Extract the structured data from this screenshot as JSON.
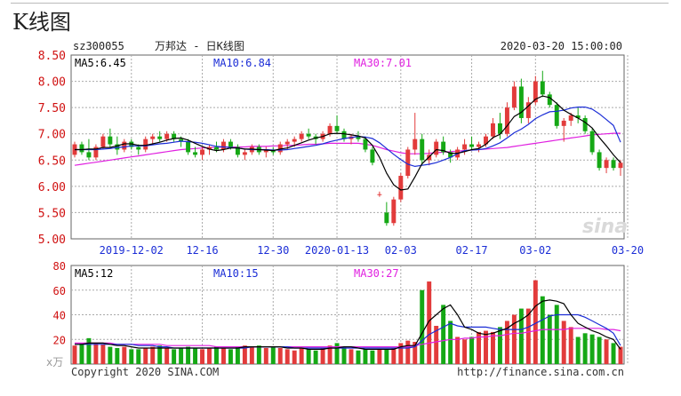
{
  "page": {
    "heading": "K线图",
    "symbol": "sz300055",
    "name_line": "万邦达 - 日K线图",
    "datetime": "2020-03-20 15:00:00",
    "watermark": "sina",
    "copyright": "Copyright 2020 SINA.COM",
    "url": "http://finance.sina.com.cn"
  },
  "colors": {
    "up": "#e23b3b",
    "down": "#15a815",
    "ma5": "#000000",
    "ma10": "#1b2dd6",
    "ma30": "#e020e0",
    "grid": "#aaaaaa",
    "axis_text": "#d01010"
  },
  "chart_data": [
    {
      "type": "candlestick",
      "title": "万邦达 - 日K线图",
      "ylim": [
        5.0,
        8.5
      ],
      "y_ticks": [
        "8.50",
        "8.00",
        "7.50",
        "7.00",
        "6.50",
        "6.00",
        "5.50",
        "5.00"
      ],
      "x_tick_labels": [
        "2019-12-02",
        "12-16",
        "12-30",
        "2020-01-13",
        "02-03",
        "02-17",
        "03-02",
        "03-20"
      ],
      "x_tick_index": [
        8,
        18,
        28,
        37,
        46,
        56,
        65,
        78
      ],
      "grid": true,
      "legend": [
        {
          "label": "MA5:",
          "value": "6.45",
          "key": "ma5"
        },
        {
          "label": "MA10:",
          "value": "6.84",
          "key": "ma10"
        },
        {
          "label": "MA30:",
          "value": "7.01",
          "key": "ma30"
        }
      ],
      "candles": [
        [
          6.6,
          6.85,
          6.55,
          6.8
        ],
        [
          6.8,
          6.85,
          6.6,
          6.65
        ],
        [
          6.65,
          6.9,
          6.5,
          6.55
        ],
        [
          6.55,
          6.8,
          6.5,
          6.75
        ],
        [
          6.75,
          7.0,
          6.7,
          6.95
        ],
        [
          6.95,
          7.1,
          6.75,
          6.8
        ],
        [
          6.8,
          6.95,
          6.6,
          6.7
        ],
        [
          6.7,
          6.9,
          6.65,
          6.85
        ],
        [
          6.85,
          6.9,
          6.7,
          6.75
        ],
        [
          6.75,
          6.8,
          6.6,
          6.7
        ],
        [
          6.7,
          6.95,
          6.65,
          6.9
        ],
        [
          6.9,
          7.0,
          6.8,
          6.95
        ],
        [
          6.95,
          7.05,
          6.85,
          6.9
        ],
        [
          6.9,
          7.05,
          6.85,
          7.0
        ],
        [
          7.0,
          7.05,
          6.85,
          6.9
        ],
        [
          6.9,
          6.95,
          6.75,
          6.85
        ],
        [
          6.85,
          6.9,
          6.6,
          6.65
        ],
        [
          6.65,
          6.75,
          6.55,
          6.6
        ],
        [
          6.6,
          6.75,
          6.5,
          6.7
        ],
        [
          6.7,
          6.8,
          6.6,
          6.75
        ],
        [
          6.75,
          6.85,
          6.65,
          6.7
        ],
        [
          6.7,
          6.9,
          6.65,
          6.85
        ],
        [
          6.85,
          6.9,
          6.7,
          6.75
        ],
        [
          6.75,
          6.8,
          6.55,
          6.6
        ],
        [
          6.6,
          6.7,
          6.5,
          6.65
        ],
        [
          6.65,
          6.8,
          6.6,
          6.75
        ],
        [
          6.75,
          6.8,
          6.6,
          6.65
        ],
        [
          6.65,
          6.75,
          6.55,
          6.7
        ],
        [
          6.7,
          6.75,
          6.6,
          6.65
        ],
        [
          6.65,
          6.85,
          6.6,
          6.8
        ],
        [
          6.8,
          6.9,
          6.7,
          6.85
        ],
        [
          6.85,
          6.95,
          6.75,
          6.9
        ],
        [
          6.9,
          7.05,
          6.85,
          7.0
        ],
        [
          7.0,
          7.1,
          6.9,
          6.95
        ],
        [
          6.95,
          7.0,
          6.8,
          6.9
        ],
        [
          6.9,
          7.05,
          6.85,
          7.0
        ],
        [
          7.0,
          7.2,
          6.95,
          7.15
        ],
        [
          7.15,
          7.35,
          7.0,
          7.05
        ],
        [
          7.05,
          7.1,
          6.85,
          6.9
        ],
        [
          6.9,
          7.0,
          6.8,
          6.95
        ],
        [
          6.95,
          7.05,
          6.85,
          6.9
        ],
        [
          6.9,
          6.95,
          6.65,
          6.7
        ],
        [
          6.7,
          6.75,
          6.4,
          6.45
        ],
        [
          5.85,
          5.9,
          5.8,
          5.85
        ],
        [
          5.5,
          5.7,
          5.25,
          5.3
        ],
        [
          5.3,
          5.8,
          5.25,
          5.75
        ],
        [
          5.75,
          6.25,
          5.7,
          6.2
        ],
        [
          6.2,
          6.75,
          6.15,
          6.7
        ],
        [
          6.7,
          7.4,
          6.6,
          6.9
        ],
        [
          6.9,
          7.0,
          6.4,
          6.5
        ],
        [
          6.5,
          6.7,
          6.4,
          6.6
        ],
        [
          6.6,
          6.9,
          6.55,
          6.85
        ],
        [
          6.85,
          6.95,
          6.6,
          6.65
        ],
        [
          6.65,
          6.7,
          6.45,
          6.55
        ],
        [
          6.55,
          6.75,
          6.5,
          6.7
        ],
        [
          6.7,
          6.9,
          6.6,
          6.8
        ],
        [
          6.8,
          6.95,
          6.7,
          6.75
        ],
        [
          6.75,
          6.85,
          6.65,
          6.8
        ],
        [
          6.8,
          7.0,
          6.75,
          6.95
        ],
        [
          6.95,
          7.3,
          6.9,
          7.2
        ],
        [
          7.2,
          7.4,
          6.9,
          7.0
        ],
        [
          7.0,
          7.6,
          6.95,
          7.5
        ],
        [
          7.5,
          8.0,
          7.45,
          7.9
        ],
        [
          7.9,
          8.05,
          7.2,
          7.3
        ],
        [
          7.3,
          7.7,
          7.2,
          7.6
        ],
        [
          7.6,
          8.1,
          7.55,
          8.0
        ],
        [
          8.0,
          8.2,
          7.7,
          7.75
        ],
        [
          7.75,
          7.8,
          7.5,
          7.55
        ],
        [
          7.55,
          7.6,
          7.1,
          7.15
        ],
        [
          7.15,
          7.3,
          6.85,
          7.25
        ],
        [
          7.25,
          7.4,
          7.15,
          7.35
        ],
        [
          7.35,
          7.5,
          7.2,
          7.3
        ],
        [
          7.3,
          7.35,
          7.0,
          7.05
        ],
        [
          7.05,
          7.1,
          6.6,
          6.65
        ],
        [
          6.65,
          6.7,
          6.3,
          6.35
        ],
        [
          6.35,
          6.55,
          6.25,
          6.5
        ],
        [
          6.5,
          6.55,
          6.3,
          6.35
        ],
        [
          6.35,
          6.5,
          6.2,
          6.45
        ]
      ],
      "ma5": [
        6.7,
        6.7,
        6.71,
        6.71,
        6.74,
        6.74,
        6.77,
        6.81,
        6.81,
        6.78,
        6.78,
        6.81,
        6.84,
        6.88,
        6.91,
        6.92,
        6.88,
        6.82,
        6.76,
        6.71,
        6.68,
        6.7,
        6.73,
        6.73,
        6.71,
        6.71,
        6.7,
        6.69,
        6.68,
        6.71,
        6.73,
        6.78,
        6.83,
        6.88,
        6.92,
        6.95,
        7.0,
        7.01,
        7.0,
        6.98,
        6.96,
        6.92,
        6.78,
        6.55,
        6.25,
        6.03,
        5.93,
        5.95,
        6.18,
        6.43,
        6.56,
        6.7,
        6.68,
        6.63,
        6.63,
        6.66,
        6.7,
        6.72,
        6.8,
        6.93,
        6.99,
        7.15,
        7.33,
        7.41,
        7.53,
        7.66,
        7.72,
        7.69,
        7.58,
        7.45,
        7.37,
        7.3,
        7.22,
        7.11,
        6.93,
        6.77,
        6.6,
        6.45
      ],
      "ma10": [
        6.7,
        6.7,
        6.7,
        6.7,
        6.71,
        6.72,
        6.74,
        6.75,
        6.77,
        6.77,
        6.77,
        6.79,
        6.81,
        6.82,
        6.84,
        6.86,
        6.85,
        6.84,
        6.82,
        6.79,
        6.76,
        6.75,
        6.74,
        6.73,
        6.71,
        6.7,
        6.7,
        6.7,
        6.69,
        6.69,
        6.7,
        6.72,
        6.74,
        6.76,
        6.78,
        6.81,
        6.85,
        6.88,
        6.91,
        6.93,
        6.95,
        6.94,
        6.91,
        6.83,
        6.72,
        6.61,
        6.51,
        6.42,
        6.38,
        6.4,
        6.42,
        6.45,
        6.5,
        6.55,
        6.62,
        6.68,
        6.69,
        6.7,
        6.72,
        6.77,
        6.83,
        6.92,
        7.02,
        7.09,
        7.18,
        7.29,
        7.36,
        7.42,
        7.43,
        7.45,
        7.49,
        7.51,
        7.51,
        7.47,
        7.38,
        7.27,
        7.16,
        6.84
      ],
      "ma30": [
        6.4,
        6.42,
        6.44,
        6.46,
        6.48,
        6.5,
        6.52,
        6.54,
        6.56,
        6.58,
        6.6,
        6.62,
        6.64,
        6.66,
        6.68,
        6.7,
        6.71,
        6.72,
        6.73,
        6.74,
        6.74,
        6.75,
        6.75,
        6.75,
        6.75,
        6.76,
        6.76,
        6.76,
        6.77,
        6.77,
        6.78,
        6.78,
        6.79,
        6.8,
        6.8,
        6.81,
        6.82,
        6.82,
        6.82,
        6.82,
        6.82,
        6.8,
        6.78,
        6.74,
        6.7,
        6.67,
        6.64,
        6.62,
        6.62,
        6.62,
        6.63,
        6.64,
        6.65,
        6.66,
        6.67,
        6.68,
        6.69,
        6.7,
        6.71,
        6.72,
        6.73,
        6.74,
        6.76,
        6.78,
        6.8,
        6.82,
        6.84,
        6.86,
        6.88,
        6.9,
        6.92,
        6.94,
        6.96,
        6.98,
        6.99,
        7.0,
        7.01,
        7.01
      ]
    },
    {
      "type": "bar",
      "title": "",
      "unit_label": "x万",
      "ylim": [
        0,
        80
      ],
      "y_ticks": [
        "80",
        "60",
        "40",
        "20"
      ],
      "legend": [
        {
          "label": "MA5:",
          "value": "12",
          "key": "ma5"
        },
        {
          "label": "MA10:",
          "value": "15",
          "key": "ma10"
        },
        {
          "label": "MA30:",
          "value": "27",
          "key": "ma30"
        }
      ],
      "volume": [
        15,
        17,
        21,
        17,
        16,
        14,
        13,
        14,
        12,
        12,
        13,
        14,
        15,
        13,
        12,
        13,
        14,
        13,
        12,
        13,
        14,
        13,
        12,
        14,
        15,
        14,
        15,
        13,
        14,
        13,
        12,
        11,
        13,
        12,
        11,
        13,
        15,
        17,
        14,
        12,
        11,
        12,
        11,
        12,
        12,
        13,
        17,
        19,
        18,
        60,
        67,
        31,
        48,
        35,
        22,
        20,
        22,
        26,
        27,
        26,
        30,
        35,
        40,
        45,
        45,
        68,
        55,
        40,
        48,
        35,
        30,
        22,
        25,
        24,
        22,
        20,
        17,
        14
      ],
      "ma5": [
        16,
        16,
        17,
        17,
        17,
        16,
        15,
        15,
        14,
        13,
        13,
        13,
        13,
        13,
        13,
        13,
        13,
        13,
        13,
        13,
        13,
        13,
        13,
        13,
        14,
        14,
        14,
        14,
        14,
        14,
        13,
        13,
        13,
        12,
        12,
        12,
        13,
        13,
        14,
        14,
        13,
        12,
        12,
        12,
        12,
        12,
        14,
        15,
        15,
        25,
        35,
        40,
        45,
        48,
        40,
        30,
        28,
        25,
        24,
        25,
        27,
        29,
        33,
        36,
        40,
        47,
        51,
        52,
        51,
        49,
        40,
        33,
        30,
        27,
        25,
        22,
        20,
        12
      ],
      "ma10": [
        16,
        16,
        16,
        16,
        16,
        16,
        16,
        16,
        16,
        15,
        15,
        15,
        14,
        14,
        13,
        13,
        13,
        13,
        13,
        13,
        13,
        13,
        13,
        13,
        13,
        14,
        14,
        14,
        14,
        14,
        14,
        13,
        13,
        13,
        13,
        13,
        13,
        13,
        13,
        13,
        13,
        13,
        13,
        13,
        13,
        13,
        13,
        13,
        14,
        19,
        24,
        27,
        30,
        33,
        31,
        30,
        30,
        30,
        30,
        29,
        28,
        28,
        28,
        28,
        30,
        33,
        36,
        39,
        40,
        40,
        40,
        40,
        38,
        35,
        32,
        29,
        25,
        15
      ],
      "ma30": [
        17,
        17,
        17,
        17,
        17,
        17,
        16,
        16,
        16,
        16,
        16,
        16,
        16,
        15,
        15,
        15,
        15,
        15,
        15,
        15,
        14,
        14,
        14,
        14,
        14,
        14,
        14,
        14,
        14,
        14,
        14,
        14,
        14,
        14,
        14,
        14,
        14,
        14,
        14,
        14,
        14,
        14,
        14,
        14,
        14,
        14,
        14,
        14,
        15,
        16,
        17,
        18,
        19,
        20,
        20,
        21,
        21,
        22,
        22,
        23,
        23,
        24,
        25,
        25,
        26,
        27,
        28,
        28,
        28,
        28,
        29,
        29,
        29,
        29,
        29,
        28,
        28,
        27
      ]
    }
  ]
}
